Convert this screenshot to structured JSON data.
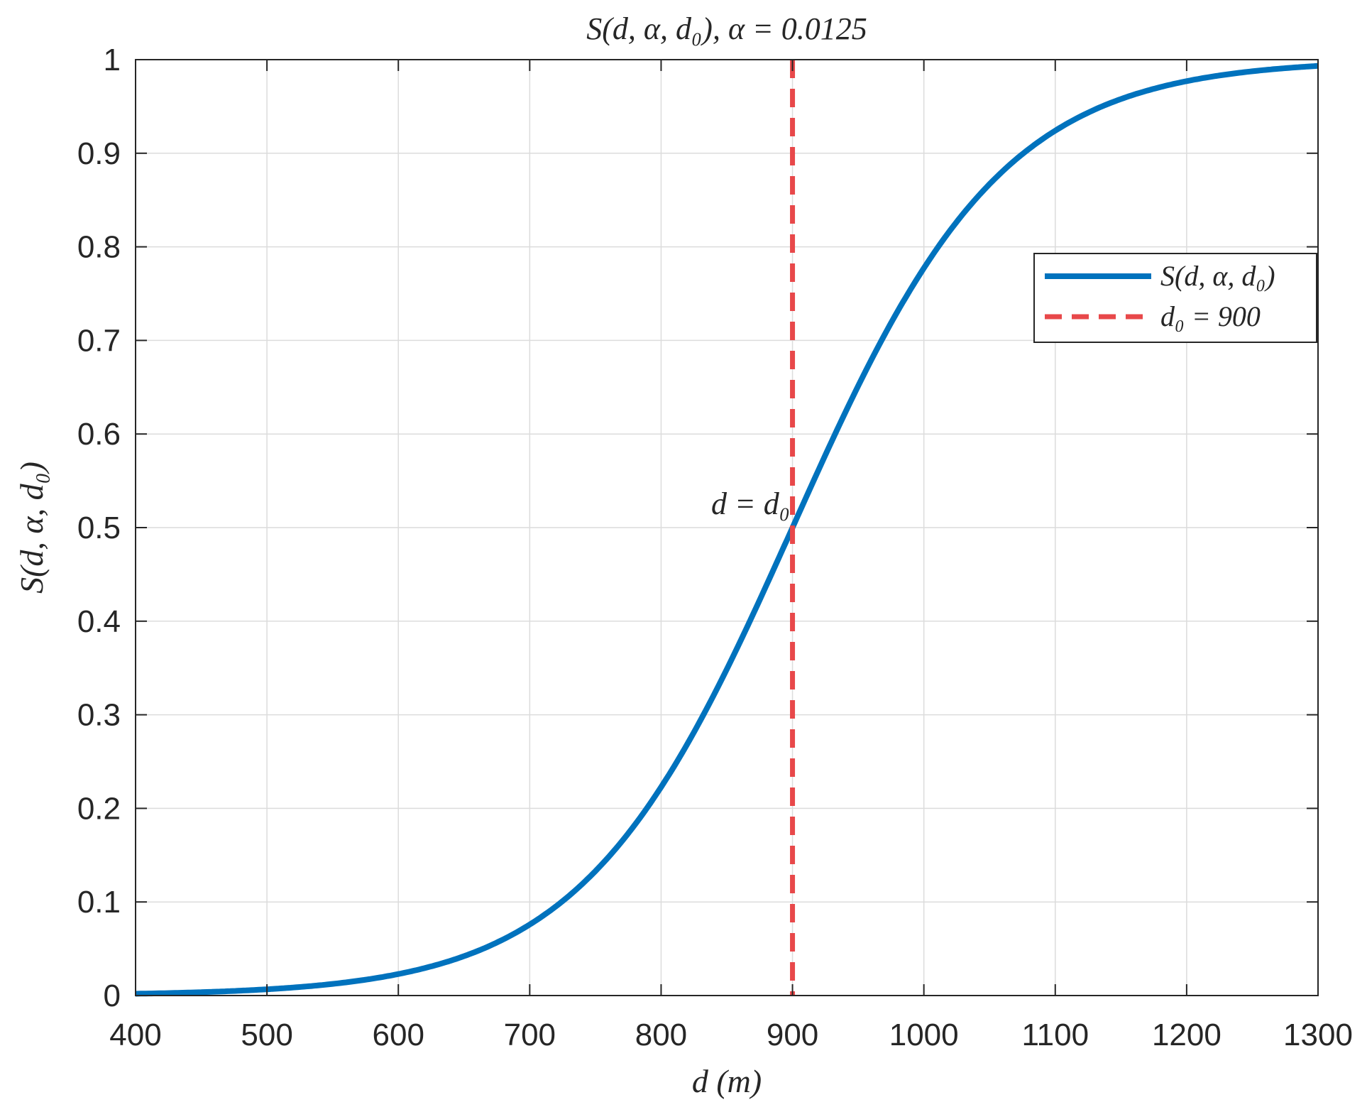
{
  "chart_data": {
    "type": "line",
    "title": "S(d, α, d₀),  α = 0.0125",
    "xlabel": "d (m)",
    "ylabel": "S(d, α, d₀)",
    "xlim": [
      400,
      1300
    ],
    "ylim": [
      0,
      1
    ],
    "grid": true,
    "xticks": [
      "400",
      "500",
      "600",
      "700",
      "800",
      "900",
      "1000",
      "1100",
      "1200",
      "1300"
    ],
    "yticks": [
      "0",
      "0.1",
      "0.2",
      "0.3",
      "0.4",
      "0.5",
      "0.6",
      "0.7",
      "0.8",
      "0.9",
      "1"
    ],
    "alpha": 0.0125,
    "d0": 900,
    "series": [
      {
        "name": "S(d, α, d₀)",
        "style": "solid",
        "color": "#0072BD",
        "function": "1/(1+exp(-alpha*(d-d0)))"
      },
      {
        "name": "d₀ = 900",
        "style": "dashed",
        "color": "#E8484A",
        "x": 900
      }
    ],
    "annotation": "d = d₀",
    "legend_position": "upper-right"
  }
}
